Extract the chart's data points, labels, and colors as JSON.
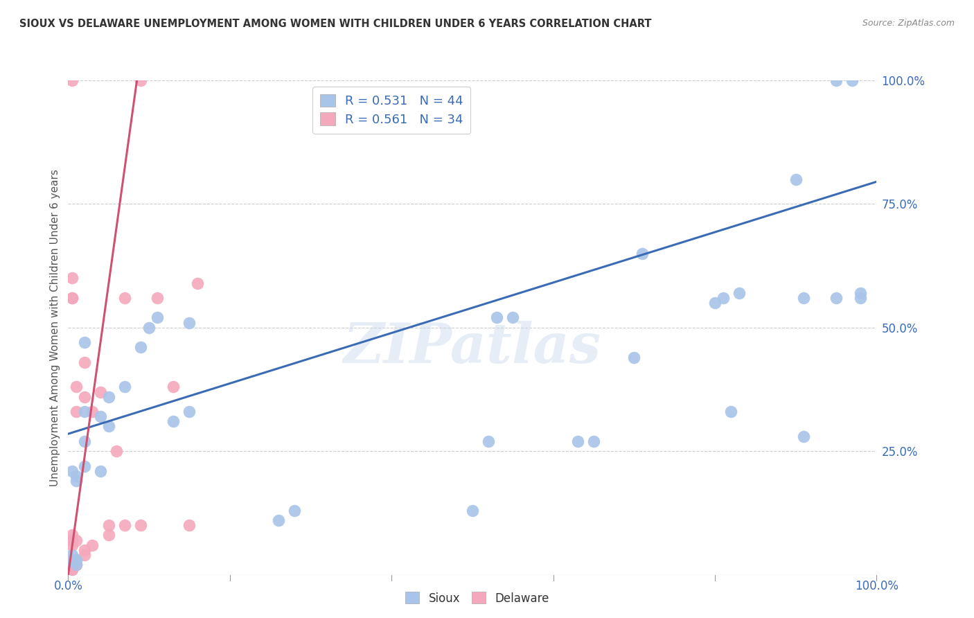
{
  "title": "SIOUX VS DELAWARE UNEMPLOYMENT AMONG WOMEN WITH CHILDREN UNDER 6 YEARS CORRELATION CHART",
  "source": "Source: ZipAtlas.com",
  "ylabel": "Unemployment Among Women with Children Under 6 years",
  "sioux_R": 0.531,
  "sioux_N": 44,
  "delaware_R": 0.561,
  "delaware_N": 34,
  "sioux_color": "#A8C4E8",
  "delaware_color": "#F4A8BC",
  "sioux_line_color": "#3B6BB5",
  "delaware_line_color": "#D05070",
  "legend_label_sioux": "Sioux",
  "legend_label_delaware": "Delaware",
  "watermark": "ZIPatlas",
  "xlim": [
    0.0,
    1.0
  ],
  "ylim": [
    0.0,
    1.0
  ],
  "xticks": [
    0.0,
    0.2,
    0.4,
    0.6,
    0.8,
    1.0
  ],
  "yticks": [
    0.25,
    0.5,
    0.75,
    1.0
  ],
  "sioux_line_x0": 0.0,
  "sioux_line_y0": 0.285,
  "sioux_line_x1": 1.0,
  "sioux_line_y1": 0.795,
  "delaware_line_x0": 0.0,
  "delaware_line_y0": 0.0,
  "delaware_line_x1": 0.085,
  "delaware_line_y1": 1.0,
  "sioux_x": [
    0.005,
    0.005,
    0.005,
    0.01,
    0.01,
    0.01,
    0.01,
    0.02,
    0.02,
    0.02,
    0.02,
    0.04,
    0.04,
    0.05,
    0.05,
    0.07,
    0.09,
    0.1,
    0.11,
    0.13,
    0.15,
    0.15,
    0.26,
    0.28,
    0.5,
    0.52,
    0.53,
    0.55,
    0.63,
    0.65,
    0.7,
    0.71,
    0.8,
    0.81,
    0.82,
    0.83,
    0.9,
    0.91,
    0.95,
    0.97,
    0.98,
    0.91,
    0.95,
    0.98
  ],
  "sioux_y": [
    0.03,
    0.04,
    0.21,
    0.02,
    0.03,
    0.19,
    0.2,
    0.22,
    0.27,
    0.33,
    0.47,
    0.21,
    0.32,
    0.3,
    0.36,
    0.38,
    0.46,
    0.5,
    0.52,
    0.31,
    0.33,
    0.51,
    0.11,
    0.13,
    0.13,
    0.27,
    0.52,
    0.52,
    0.27,
    0.27,
    0.44,
    0.65,
    0.55,
    0.56,
    0.33,
    0.57,
    0.8,
    0.28,
    1.0,
    1.0,
    0.57,
    0.56,
    0.56,
    0.56
  ],
  "delaware_x": [
    0.005,
    0.005,
    0.005,
    0.005,
    0.005,
    0.005,
    0.005,
    0.005,
    0.005,
    0.005,
    0.01,
    0.01,
    0.01,
    0.01,
    0.01,
    0.02,
    0.02,
    0.02,
    0.02,
    0.03,
    0.03,
    0.04,
    0.05,
    0.05,
    0.06,
    0.07,
    0.07,
    0.09,
    0.09,
    0.11,
    0.13,
    0.15,
    0.16,
    0.005
  ],
  "delaware_y": [
    0.01,
    0.01,
    0.02,
    0.03,
    0.06,
    0.07,
    0.08,
    0.56,
    0.6,
    1.0,
    0.02,
    0.03,
    0.07,
    0.33,
    0.38,
    0.04,
    0.05,
    0.36,
    0.43,
    0.06,
    0.33,
    0.37,
    0.08,
    0.1,
    0.25,
    0.1,
    0.56,
    0.1,
    1.0,
    0.56,
    0.38,
    0.1,
    0.59,
    0.56
  ]
}
